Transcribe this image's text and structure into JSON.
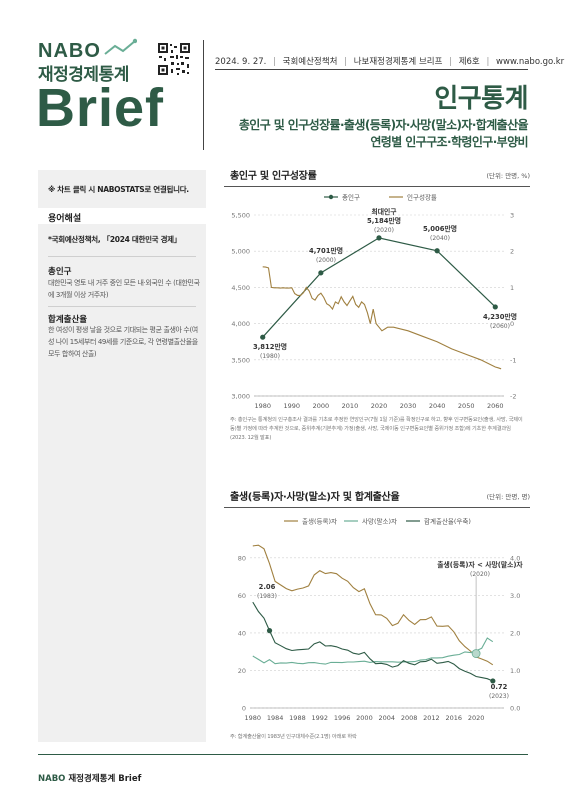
{
  "header": {
    "logo": "NABO",
    "logo_sub": "재정경제통계",
    "logo_brief": "Brief",
    "date": "2024. 9. 27.",
    "office": "국회예산정책처",
    "series": "나보재정경제통계 브리프",
    "issue": "제6호",
    "site": "www.nabo.go.kr",
    "title": "인구통계",
    "subtitle_1": "총인구 및 인구성장률·출생(등록)자·사망(말소)자·합계출산율",
    "subtitle_2": "연령별 인구구조·학령인구·부양비"
  },
  "sidebar": {
    "note": "※ 차트 클릭 시 NABOSTATS로 연결됩니다.",
    "glossary_title": "용어해설",
    "source": "*국회예산정책처, 「2024 대한민국 경제」",
    "term1_title": "총인구",
    "term1_body": "대한민국 영토 내 거주 중인 모든 내·외국인 수 (대한민국에 3개월 이상 거주자)",
    "term2_title": "합계출산율",
    "term2_body": "한 여성이 평생 낳을 것으로 기대되는 평균 출생아 수(여성 나이 15세부터 49세를 기준으로, 각 연령별출산율을 모두 합하여 산출)"
  },
  "chart1_title": "총인구 및 인구성장률",
  "chart1_unit": "(단위: 만명, %)",
  "chart1_note": "주: 총인구는 통계청의 인구총조사 결과를 기초로 추정한 연앙인구(7월 1일 기준)를 확정인구로 하고, 향후 인구변동요인(출생, 사망, 국제이동)별 가정에 따라 추계한 것으로, 중위추계(기본추계) 가정(출생, 사망, 국제이동 인구변동요인별 중위가정 조합)에 기초한 추계결과임(2023. 12월 발표)",
  "chart2_title": "출생(등록)자·사망(말소)자 및 합계출산율",
  "chart2_unit": "(단위: 만명, 명)",
  "chart2_note": "주: 합계출산율이 1983년 인구대체수준(2.1명) 아래로 하락",
  "footer_brand": "NABO",
  "footer_text": " 재정경제통계 Brief",
  "chart_data": [
    {
      "type": "line",
      "title": "총인구 및 인구성장률",
      "series": [
        {
          "name": "총인구",
          "color": "#2e5b46",
          "axis": "left",
          "x": [
            1980,
            2000,
            2020,
            2040,
            2060
          ],
          "values": [
            3812,
            4701,
            5184,
            5006,
            4230
          ]
        },
        {
          "name": "인구성장률",
          "color": "#a08040",
          "axis": "right",
          "x": [
            1980,
            1981,
            1982,
            1983,
            1984,
            1985,
            1986,
            1987,
            1988,
            1989,
            1990,
            1991,
            1992,
            1993,
            1994,
            1995,
            1996,
            1997,
            1998,
            1999,
            2000,
            2001,
            2002,
            2003,
            2004,
            2005,
            2006,
            2007,
            2008,
            2009,
            2010,
            2011,
            2012,
            2013,
            2014,
            2015,
            2016,
            2017,
            2018,
            2019,
            2020,
            2021,
            2022,
            2023,
            2024,
            2025,
            2030,
            2035,
            2040,
            2045,
            2050,
            2055,
            2060,
            2061,
            2062
          ],
          "values": [
            1.57,
            1.56,
            1.54,
            1.0,
            0.99,
            0.99,
            0.98,
            0.99,
            0.98,
            0.98,
            0.99,
            0.83,
            0.78,
            0.78,
            0.85,
            1.0,
            0.9,
            0.7,
            0.65,
            0.78,
            0.84,
            0.72,
            0.55,
            0.5,
            0.4,
            0.6,
            0.55,
            0.74,
            0.6,
            0.5,
            0.63,
            0.75,
            0.53,
            0.45,
            0.6,
            0.53,
            0.3,
            0.0,
            0.4,
            0.0,
            -0.1,
            -0.2,
            -0.15,
            -0.1,
            -0.1,
            -0.1,
            -0.2,
            -0.35,
            -0.5,
            -0.7,
            -0.85,
            -1.0,
            -1.2,
            -1.22,
            -1.25
          ]
        }
      ],
      "x_ticks": [
        1980,
        1990,
        2000,
        2010,
        2020,
        2030,
        2040,
        2050,
        2060
      ],
      "y_left_ticks": [
        3000,
        3500,
        4000,
        4500,
        5000,
        5500
      ],
      "y_left_labels": [
        "3,000",
        "3,500",
        "4,000",
        "4,500",
        "5,000",
        "5,500"
      ],
      "y_right_ticks": [
        -2,
        -1,
        0,
        1,
        2,
        3
      ],
      "xlim": [
        1977,
        2063
      ],
      "ylim_left": [
        3000,
        5500
      ],
      "ylim_right": [
        -2,
        3
      ],
      "annotations": [
        {
          "x": 1980,
          "lines": [
            "3,812만명",
            "(1980)"
          ]
        },
        {
          "x": 2000,
          "lines": [
            "4,701만명",
            "(2000)"
          ]
        },
        {
          "x": 2020,
          "lines": [
            "최대인구",
            "5,184만명",
            "(2020)"
          ]
        },
        {
          "x": 2040,
          "lines": [
            "5,006만명",
            "(2040)"
          ]
        },
        {
          "x": 2060,
          "lines": [
            "4,230만명",
            "(2060)"
          ]
        }
      ],
      "legend": "top"
    },
    {
      "type": "line",
      "title": "출생(등록)자·사망(말소)자 및 합계출산율",
      "series": [
        {
          "name": "출생(등록)자",
          "color": "#a08040",
          "axis": "left",
          "x": [
            1980,
            1981,
            1982,
            1983,
            1984,
            1985,
            1986,
            1987,
            1988,
            1989,
            1990,
            1991,
            1992,
            1993,
            1994,
            1995,
            1996,
            1997,
            1998,
            1999,
            2000,
            2001,
            2002,
            2003,
            2004,
            2005,
            2006,
            2007,
            2008,
            2009,
            2010,
            2011,
            2012,
            2013,
            2014,
            2015,
            2016,
            2017,
            2018,
            2019,
            2020,
            2021,
            2022,
            2023
          ],
          "values": [
            86.3,
            86.7,
            84.8,
            76.9,
            67.4,
            65.5,
            63.6,
            62.4,
            63.3,
            63.9,
            65.0,
            70.9,
            73.1,
            71.6,
            72.1,
            71.5,
            69.1,
            67.5,
            64.1,
            62.0,
            63.5,
            55.5,
            49.7,
            49.6,
            47.7,
            43.9,
            45.1,
            49.7,
            46.6,
            44.5,
            47.0,
            47.1,
            48.5,
            43.6,
            43.5,
            43.8,
            40.6,
            35.8,
            32.7,
            30.3,
            27.2,
            26.1,
            24.9,
            23.0
          ]
        },
        {
          "name": "사망(말소)자",
          "color": "#6aae96",
          "axis": "left",
          "x": [
            1980,
            1981,
            1982,
            1983,
            1984,
            1985,
            1986,
            1987,
            1988,
            1989,
            1990,
            1991,
            1992,
            1993,
            1994,
            1995,
            1996,
            1997,
            1998,
            1999,
            2000,
            2001,
            2002,
            2003,
            2004,
            2005,
            2006,
            2007,
            2008,
            2009,
            2010,
            2011,
            2012,
            2013,
            2014,
            2015,
            2016,
            2017,
            2018,
            2019,
            2020,
            2021,
            2022,
            2023
          ],
          "values": [
            27.7,
            25.9,
            24.0,
            25.7,
            23.6,
            24.0,
            23.9,
            24.3,
            23.8,
            23.6,
            24.1,
            24.2,
            23.7,
            23.4,
            24.3,
            24.3,
            24.2,
            24.5,
            24.5,
            24.7,
            24.9,
            24.3,
            24.7,
            24.6,
            24.6,
            24.6,
            24.4,
            24.5,
            24.6,
            24.7,
            25.5,
            25.7,
            26.7,
            26.7,
            26.8,
            27.6,
            28.1,
            28.5,
            29.9,
            29.5,
            30.5,
            31.8,
            37.3,
            35.3
          ]
        },
        {
          "name": "합계출산율(우축)",
          "color": "#2e5b46",
          "axis": "right",
          "x": [
            1980,
            1981,
            1982,
            1983,
            1984,
            1985,
            1986,
            1987,
            1988,
            1989,
            1990,
            1991,
            1992,
            1993,
            1994,
            1995,
            1996,
            1997,
            1998,
            1999,
            2000,
            2001,
            2002,
            2003,
            2004,
            2005,
            2006,
            2007,
            2008,
            2009,
            2010,
            2011,
            2012,
            2013,
            2014,
            2015,
            2016,
            2017,
            2018,
            2019,
            2020,
            2021,
            2022,
            2023
          ],
          "values": [
            2.82,
            2.57,
            2.39,
            2.06,
            1.74,
            1.66,
            1.58,
            1.53,
            1.55,
            1.56,
            1.57,
            1.71,
            1.76,
            1.65,
            1.66,
            1.63,
            1.57,
            1.54,
            1.46,
            1.43,
            1.48,
            1.31,
            1.18,
            1.19,
            1.16,
            1.09,
            1.13,
            1.26,
            1.19,
            1.15,
            1.23,
            1.24,
            1.3,
            1.19,
            1.21,
            1.24,
            1.17,
            1.05,
            0.98,
            0.92,
            0.84,
            0.81,
            0.78,
            0.72
          ]
        }
      ],
      "x_ticks": [
        1980,
        1984,
        1988,
        1992,
        1996,
        2000,
        2004,
        2008,
        2012,
        2016,
        2020
      ],
      "y_left_ticks": [
        0,
        20,
        40,
        60,
        80
      ],
      "y_right_ticks": [
        0,
        1,
        2,
        3,
        4
      ],
      "y_right_labels": [
        "0.0",
        "1.0",
        "2.0",
        "3.0",
        "4.0"
      ],
      "xlim": [
        1979.5,
        2025
      ],
      "ylim_left": [
        0,
        90
      ],
      "ylim_right": [
        0,
        4.5
      ],
      "annotations": [
        {
          "x": 1983,
          "lines": [
            "2.06",
            "(1983)"
          ]
        },
        {
          "x": 2023,
          "lines": [
            "0.72",
            "(2023)"
          ]
        },
        {
          "x": 2020,
          "lines": [
            "출생(등록)자 < 사망(말소)자",
            "(2020)"
          ]
        }
      ],
      "legend": "top"
    }
  ]
}
